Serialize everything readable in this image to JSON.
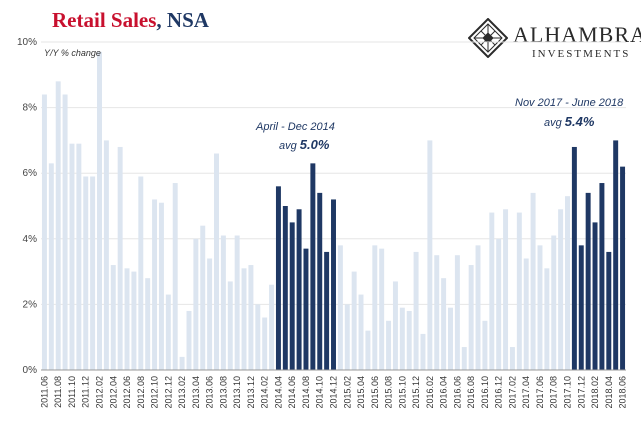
{
  "title": {
    "part1": "Retail Sales",
    "part2": ", NSA"
  },
  "logo": {
    "name": "ALHAMBRA",
    "sub": "INVESTMENTS",
    "icon": "diamond-lattice-icon"
  },
  "colors": {
    "light": "#dce5f0",
    "dark": "#1f3864",
    "title_red": "#c8102e",
    "axis": "#999999"
  },
  "annotations": [
    {
      "period": "April - Dec 2014",
      "avg_label": "avg ",
      "avg_value": "5.0%"
    },
    {
      "period": "Nov 2017 - June 2018",
      "avg_label": "avg ",
      "avg_value": "5.4%"
    }
  ],
  "chart_data": {
    "type": "bar",
    "ylabel": "Y/Y % change",
    "ylim": [
      0,
      10
    ],
    "yticks": [
      "0%",
      "2%",
      "4%",
      "6%",
      "8%",
      "10%"
    ],
    "xtick_labels": [
      "2011.06",
      "2011.08",
      "2011.10",
      "2011.12",
      "2012.02",
      "2012.04",
      "2012.06",
      "2012.08",
      "2012.10",
      "2012.12",
      "2013.02",
      "2013.04",
      "2013.06",
      "2013.08",
      "2013.10",
      "2013.12",
      "2014.02",
      "2014.04",
      "2014.06",
      "2014.08",
      "2014.10",
      "2014.12",
      "2015.02",
      "2015.04",
      "2015.06",
      "2015.08",
      "2015.10",
      "2015.12",
      "2016.02",
      "2016.04",
      "2016.06",
      "2016.08",
      "2016.10",
      "2016.12",
      "2017.02",
      "2017.04",
      "2017.06",
      "2017.08",
      "2017.10",
      "2017.12",
      "2018.02",
      "2018.04",
      "2018.06"
    ],
    "categories": [
      "2011.06",
      "2011.07",
      "2011.08",
      "2011.09",
      "2011.10",
      "2011.11",
      "2011.12",
      "2012.01",
      "2012.02",
      "2012.03",
      "2012.04",
      "2012.05",
      "2012.06",
      "2012.07",
      "2012.08",
      "2012.09",
      "2012.10",
      "2012.11",
      "2012.12",
      "2013.01",
      "2013.02",
      "2013.03",
      "2013.04",
      "2013.05",
      "2013.06",
      "2013.07",
      "2013.08",
      "2013.09",
      "2013.10",
      "2013.11",
      "2013.12",
      "2014.01",
      "2014.02",
      "2014.03",
      "2014.04",
      "2014.05",
      "2014.06",
      "2014.07",
      "2014.08",
      "2014.09",
      "2014.10",
      "2014.11",
      "2014.12",
      "2015.01",
      "2015.02",
      "2015.03",
      "2015.04",
      "2015.05",
      "2015.06",
      "2015.07",
      "2015.08",
      "2015.09",
      "2015.10",
      "2015.11",
      "2015.12",
      "2016.01",
      "2016.02",
      "2016.03",
      "2016.04",
      "2016.05",
      "2016.06",
      "2016.07",
      "2016.08",
      "2016.09",
      "2016.10",
      "2016.11",
      "2016.12",
      "2017.01",
      "2017.02",
      "2017.03",
      "2017.04",
      "2017.05",
      "2017.06",
      "2017.07",
      "2017.08",
      "2017.09",
      "2017.10",
      "2017.11",
      "2017.12",
      "2018.01",
      "2018.02",
      "2018.03",
      "2018.04",
      "2018.05",
      "2018.06"
    ],
    "values": [
      8.4,
      6.3,
      8.8,
      8.4,
      6.9,
      6.9,
      5.9,
      5.9,
      9.7,
      7.0,
      3.2,
      6.8,
      3.1,
      3.0,
      5.9,
      2.8,
      5.2,
      5.1,
      2.3,
      5.7,
      0.4,
      1.8,
      4.0,
      4.4,
      3.4,
      6.6,
      4.1,
      2.7,
      4.1,
      3.1,
      3.2,
      2.0,
      1.6,
      2.6,
      5.6,
      5.0,
      4.5,
      4.9,
      3.7,
      6.3,
      5.4,
      3.6,
      5.2,
      3.8,
      2.0,
      3.0,
      2.3,
      1.2,
      3.8,
      3.7,
      1.5,
      2.7,
      1.9,
      1.8,
      3.6,
      1.1,
      7.0,
      3.5,
      2.8,
      1.9,
      3.5,
      0.7,
      3.2,
      3.8,
      1.5,
      4.8,
      4.0,
      4.9,
      0.7,
      4.8,
      3.4,
      5.4,
      3.8,
      3.1,
      4.1,
      4.9,
      5.3,
      6.8,
      3.8,
      5.4,
      4.5,
      5.7,
      3.6,
      7.0,
      6.2
    ],
    "highlight": [
      false,
      false,
      false,
      false,
      false,
      false,
      false,
      false,
      false,
      false,
      false,
      false,
      false,
      false,
      false,
      false,
      false,
      false,
      false,
      false,
      false,
      false,
      false,
      false,
      false,
      false,
      false,
      false,
      false,
      false,
      false,
      false,
      false,
      false,
      true,
      true,
      true,
      true,
      true,
      true,
      true,
      true,
      true,
      false,
      false,
      false,
      false,
      false,
      false,
      false,
      false,
      false,
      false,
      false,
      false,
      false,
      false,
      false,
      false,
      false,
      false,
      false,
      false,
      false,
      false,
      false,
      false,
      false,
      false,
      false,
      false,
      false,
      false,
      false,
      false,
      false,
      false,
      true,
      true,
      true,
      true,
      true,
      true,
      true,
      true
    ]
  }
}
